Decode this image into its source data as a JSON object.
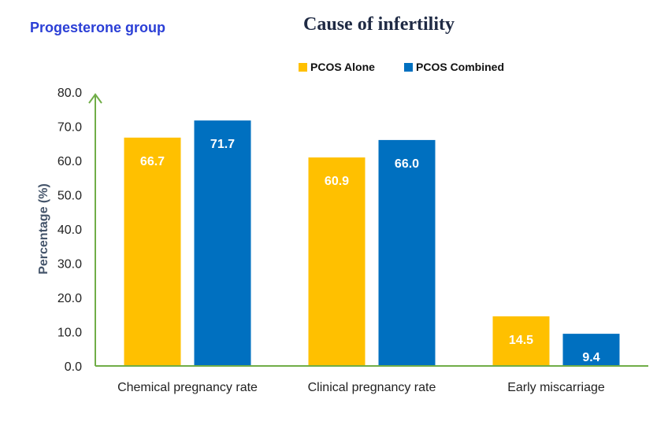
{
  "chart_data": {
    "type": "bar",
    "title": "Cause of infertility",
    "subtitle": "Progesterone group",
    "ylabel": "Percentage (%)",
    "xlabel": "",
    "ylim": [
      0,
      80
    ],
    "yticks": [
      "0.0",
      "10.0",
      "20.0",
      "30.0",
      "40.0",
      "50.0",
      "60.0",
      "70.0",
      "80.0"
    ],
    "categories": [
      "Chemical pregnancy rate",
      "Clinical pregnancy rate",
      "Early miscarriage"
    ],
    "series": [
      {
        "name": "PCOS Alone",
        "color": "#ffc000",
        "values": [
          66.7,
          60.9,
          14.5
        ],
        "labels": [
          "66.7",
          "60.9",
          "14.5"
        ]
      },
      {
        "name": "PCOS Combined",
        "color": "#0070c0",
        "values": [
          71.7,
          66.0,
          9.4
        ],
        "labels": [
          "71.7",
          "66.0",
          "9.4"
        ]
      }
    ],
    "legend_position": "top-center",
    "axis_color": "#70ad47",
    "grid": false
  }
}
